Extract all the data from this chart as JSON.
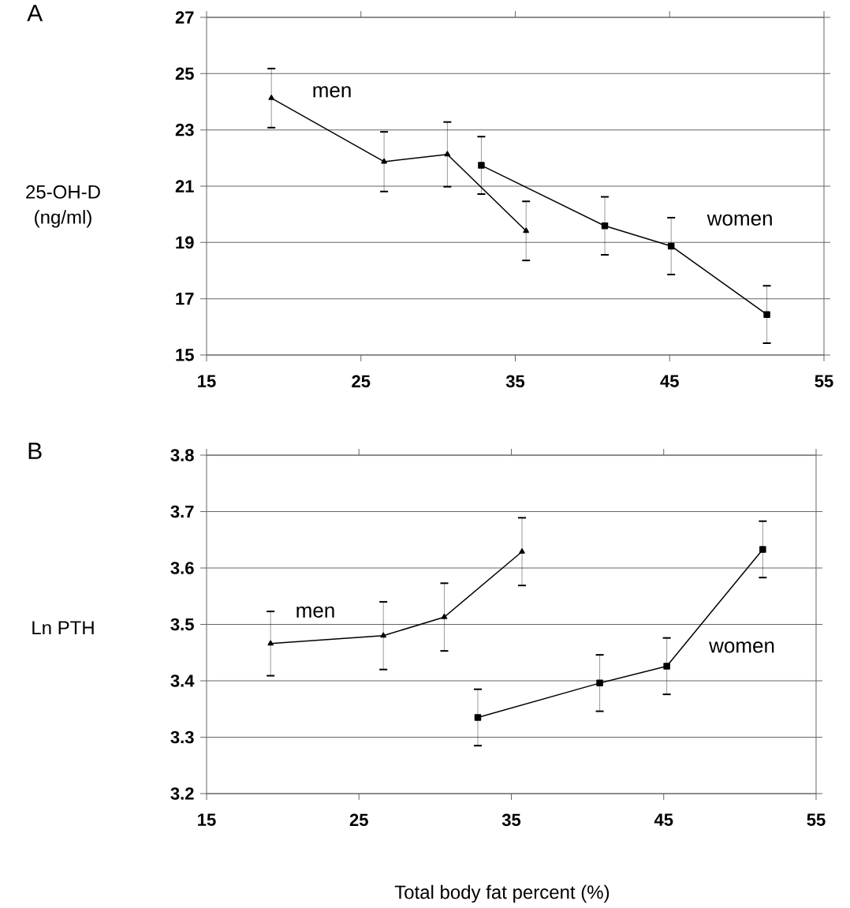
{
  "chart_data": [
    {
      "type": "line",
      "title": "A",
      "ylabel": "25-OH-D\n(ng/ml)",
      "xlim": [
        15,
        55
      ],
      "xticks": [
        15,
        25,
        35,
        45,
        55
      ],
      "ylim": [
        15,
        27
      ],
      "yticks": [
        15,
        17,
        19,
        21,
        23,
        25,
        27
      ],
      "grid": "y",
      "series": [
        {
          "name": "men",
          "color": "#000000",
          "marker": "triangle",
          "x": [
            19.2,
            26.5,
            30.6,
            35.7
          ],
          "values": [
            24.13,
            21.87,
            22.13,
            19.41
          ],
          "errors": [
            1.05,
            1.06,
            1.15,
            1.05
          ]
        },
        {
          "name": "women",
          "color": "#000000",
          "marker": "square",
          "x": [
            32.8,
            40.8,
            45.1,
            51.3
          ],
          "values": [
            21.74,
            19.59,
            18.87,
            16.44
          ],
          "errors": [
            1.02,
            1.03,
            1.01,
            1.02
          ]
        }
      ]
    },
    {
      "type": "line",
      "title": "B",
      "ylabel": "Ln PTH",
      "xlabel": "Total body fat percent (%)",
      "xlim": [
        15,
        55
      ],
      "xticks": [
        15,
        25,
        35,
        45,
        55
      ],
      "ylim": [
        3.2,
        3.8
      ],
      "yticks": [
        3.2,
        3.3,
        3.4,
        3.5,
        3.6,
        3.7,
        3.8
      ],
      "grid": "y",
      "series": [
        {
          "name": "men",
          "color": "#000000",
          "marker": "triangle",
          "x": [
            19.2,
            26.6,
            30.6,
            35.7
          ],
          "values": [
            3.466,
            3.48,
            3.513,
            3.629
          ],
          "errors": [
            0.057,
            0.06,
            0.06,
            0.06
          ]
        },
        {
          "name": "women",
          "color": "#000000",
          "marker": "square",
          "x": [
            32.8,
            40.8,
            45.2,
            51.5
          ],
          "values": [
            3.335,
            3.396,
            3.426,
            3.633
          ],
          "errors": [
            0.05,
            0.05,
            0.05,
            0.05
          ]
        }
      ]
    }
  ]
}
